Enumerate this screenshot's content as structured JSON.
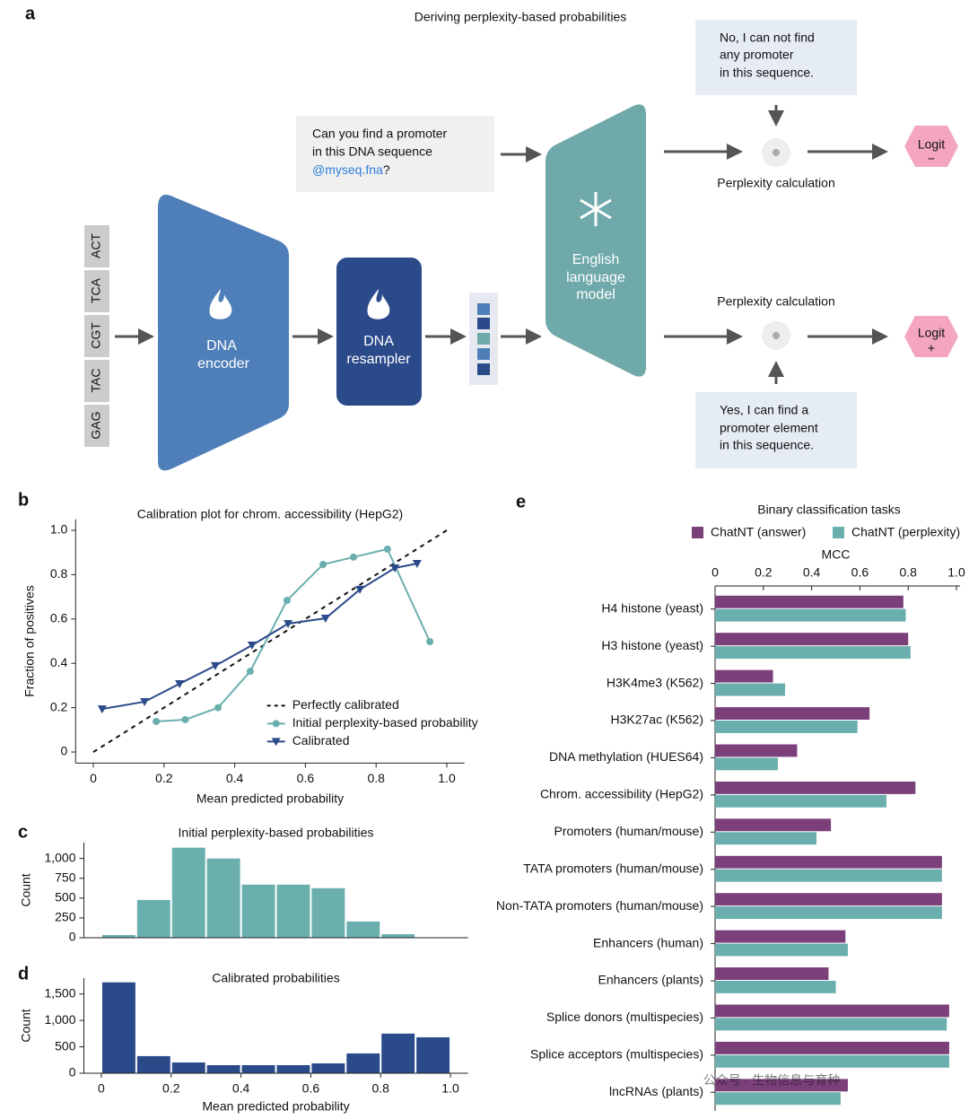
{
  "diagram": {
    "panel_label": "a",
    "title": "Deriving perplexity-based probabilities",
    "codons": [
      "ACT",
      "TCA",
      "CGT",
      "TAC",
      "GAG"
    ],
    "dna_encoder": [
      "DNA",
      "encoder"
    ],
    "dna_resampler": [
      "DNA",
      "resampler"
    ],
    "language_model": [
      "English",
      "language",
      "model"
    ],
    "question": [
      "Can you find a promoter",
      "in this DNA sequence"
    ],
    "question_file": "@myseq.fna",
    "question_end": "?",
    "answer_no": [
      "No, I can not find",
      "any promoter",
      "in this sequence."
    ],
    "answer_yes": [
      "Yes, I can find a",
      "promoter element",
      "in this sequence."
    ],
    "perplexity_top": "Perplexity calculation",
    "perplexity_bottom": "Perplexity calculation",
    "logit_negative": [
      "Logit",
      "−"
    ],
    "logit_positive": [
      "Logit",
      "+"
    ]
  },
  "chart_data": [
    {
      "type": "line",
      "panel_label": "b",
      "title": "Calibration plot for chrom. accessibility (HepG2)",
      "x_label": "Mean predicted probability",
      "y_label": "Fraction of positives",
      "xlim": [
        -0.05,
        1.05
      ],
      "ylim": [
        -0.05,
        1.05
      ],
      "xticks": [
        0,
        0.2,
        0.4,
        0.6,
        0.8,
        {
          "value": 1,
          "label": "1.0"
        }
      ],
      "yticks": [
        0,
        0.2,
        0.4,
        0.6,
        0.8,
        {
          "value": 1,
          "label": "1.0"
        }
      ],
      "legend": "lower right",
      "series": [
        {
          "name": "Perfectly calibrated",
          "color": "#111111",
          "style": "dashed",
          "marker": "none",
          "x": [
            0,
            1
          ],
          "values": [
            0,
            1
          ]
        },
        {
          "name": "Initial perplexity-based probability",
          "color": "#6aafae",
          "style": "solid",
          "marker": "circle",
          "x": [
            0.178,
            0.26,
            0.353,
            0.444,
            0.548,
            0.65,
            0.736,
            0.832,
            0.952
          ],
          "values": [
            0.138,
            0.146,
            0.2,
            0.364,
            0.684,
            0.846,
            0.879,
            0.915,
            0.498
          ]
        },
        {
          "name": "Calibrated",
          "color": "#2b4a8a",
          "style": "solid",
          "marker": "triangle-down",
          "x": [
            0.025,
            0.145,
            0.244,
            0.345,
            0.449,
            0.551,
            0.657,
            0.754,
            0.853,
            0.916
          ],
          "values": [
            0.194,
            0.227,
            0.308,
            0.389,
            0.482,
            0.579,
            0.603,
            0.733,
            0.83,
            0.85
          ]
        }
      ]
    },
    {
      "type": "histogram",
      "panel_label": "c",
      "title": "Initial perplexity-based probabilities",
      "y_label": "Count",
      "color": "#6aafae",
      "bins": [
        0,
        0.1,
        0.2,
        0.3,
        0.4,
        0.5,
        0.6,
        0.7,
        0.8,
        0.9,
        1.0
      ],
      "values": [
        34,
        477,
        1136,
        1000,
        670,
        670,
        625,
        205,
        45,
        0
      ],
      "xlim": [
        -0.05,
        1.05
      ],
      "ylim": [
        0,
        1200
      ],
      "yticks": [
        0,
        250,
        500,
        750,
        {
          "value": 1000,
          "label": "1,000"
        }
      ]
    },
    {
      "type": "histogram",
      "panel_label": "d",
      "title": "Calibrated probabilities",
      "y_label": "Count",
      "x_label": "Mean predicted probability",
      "color": "#2b4a8a",
      "bins": [
        0,
        0.1,
        0.2,
        0.3,
        0.4,
        0.5,
        0.6,
        0.7,
        0.8,
        0.9,
        1.0
      ],
      "values": [
        1720,
        324,
        204,
        153,
        153,
        153,
        187,
        375,
        750,
        680
      ],
      "xlim": [
        -0.05,
        1.05
      ],
      "ylim": [
        0,
        1800
      ],
      "xticks": [
        0,
        0.2,
        0.4,
        0.6,
        0.8,
        {
          "value": 1,
          "label": "1.0"
        }
      ],
      "yticks": [
        0,
        500,
        {
          "value": 1000,
          "label": "1,000"
        },
        {
          "value": 1500,
          "label": "1,500"
        }
      ]
    },
    {
      "type": "barh",
      "panel_label": "e",
      "title": "Binary classification tasks",
      "x_label": "MCC",
      "xlim": [
        0,
        1
      ],
      "xticks": [
        0,
        0.2,
        0.4,
        0.6,
        0.8,
        {
          "value": 1,
          "label": "1.0"
        }
      ],
      "categories": [
        "H4 histone (yeast)",
        "H3 histone (yeast)",
        "H3K4me3 (K562)",
        "H3K27ac (K562)",
        "DNA methylation (HUES64)",
        "Chrom. accessibility (HepG2)",
        "Promoters (human/mouse)",
        "TATA promoters (human/mouse)",
        "Non-TATA promoters (human/mouse)",
        "Enhancers (human)",
        "Enhancers (plants)",
        "Splice donors (multispecies)",
        "Splice acceptors (multispecies)",
        "lncRNAs (plants)"
      ],
      "series": [
        {
          "name": "ChatNT (answer)",
          "color": "#7b3f7a",
          "values": [
            0.78,
            0.8,
            0.24,
            0.64,
            0.34,
            0.83,
            0.48,
            0.94,
            0.94,
            0.54,
            0.47,
            0.97,
            0.97,
            0.55
          ]
        },
        {
          "name": "ChatNT (perplexity)",
          "color": "#6aafae",
          "values": [
            0.79,
            0.81,
            0.29,
            0.59,
            0.26,
            0.71,
            0.42,
            0.94,
            0.94,
            0.55,
            0.5,
            0.96,
            0.97,
            0.52
          ]
        }
      ]
    }
  ],
  "watermark": "公众号 · 生物信息与育种"
}
